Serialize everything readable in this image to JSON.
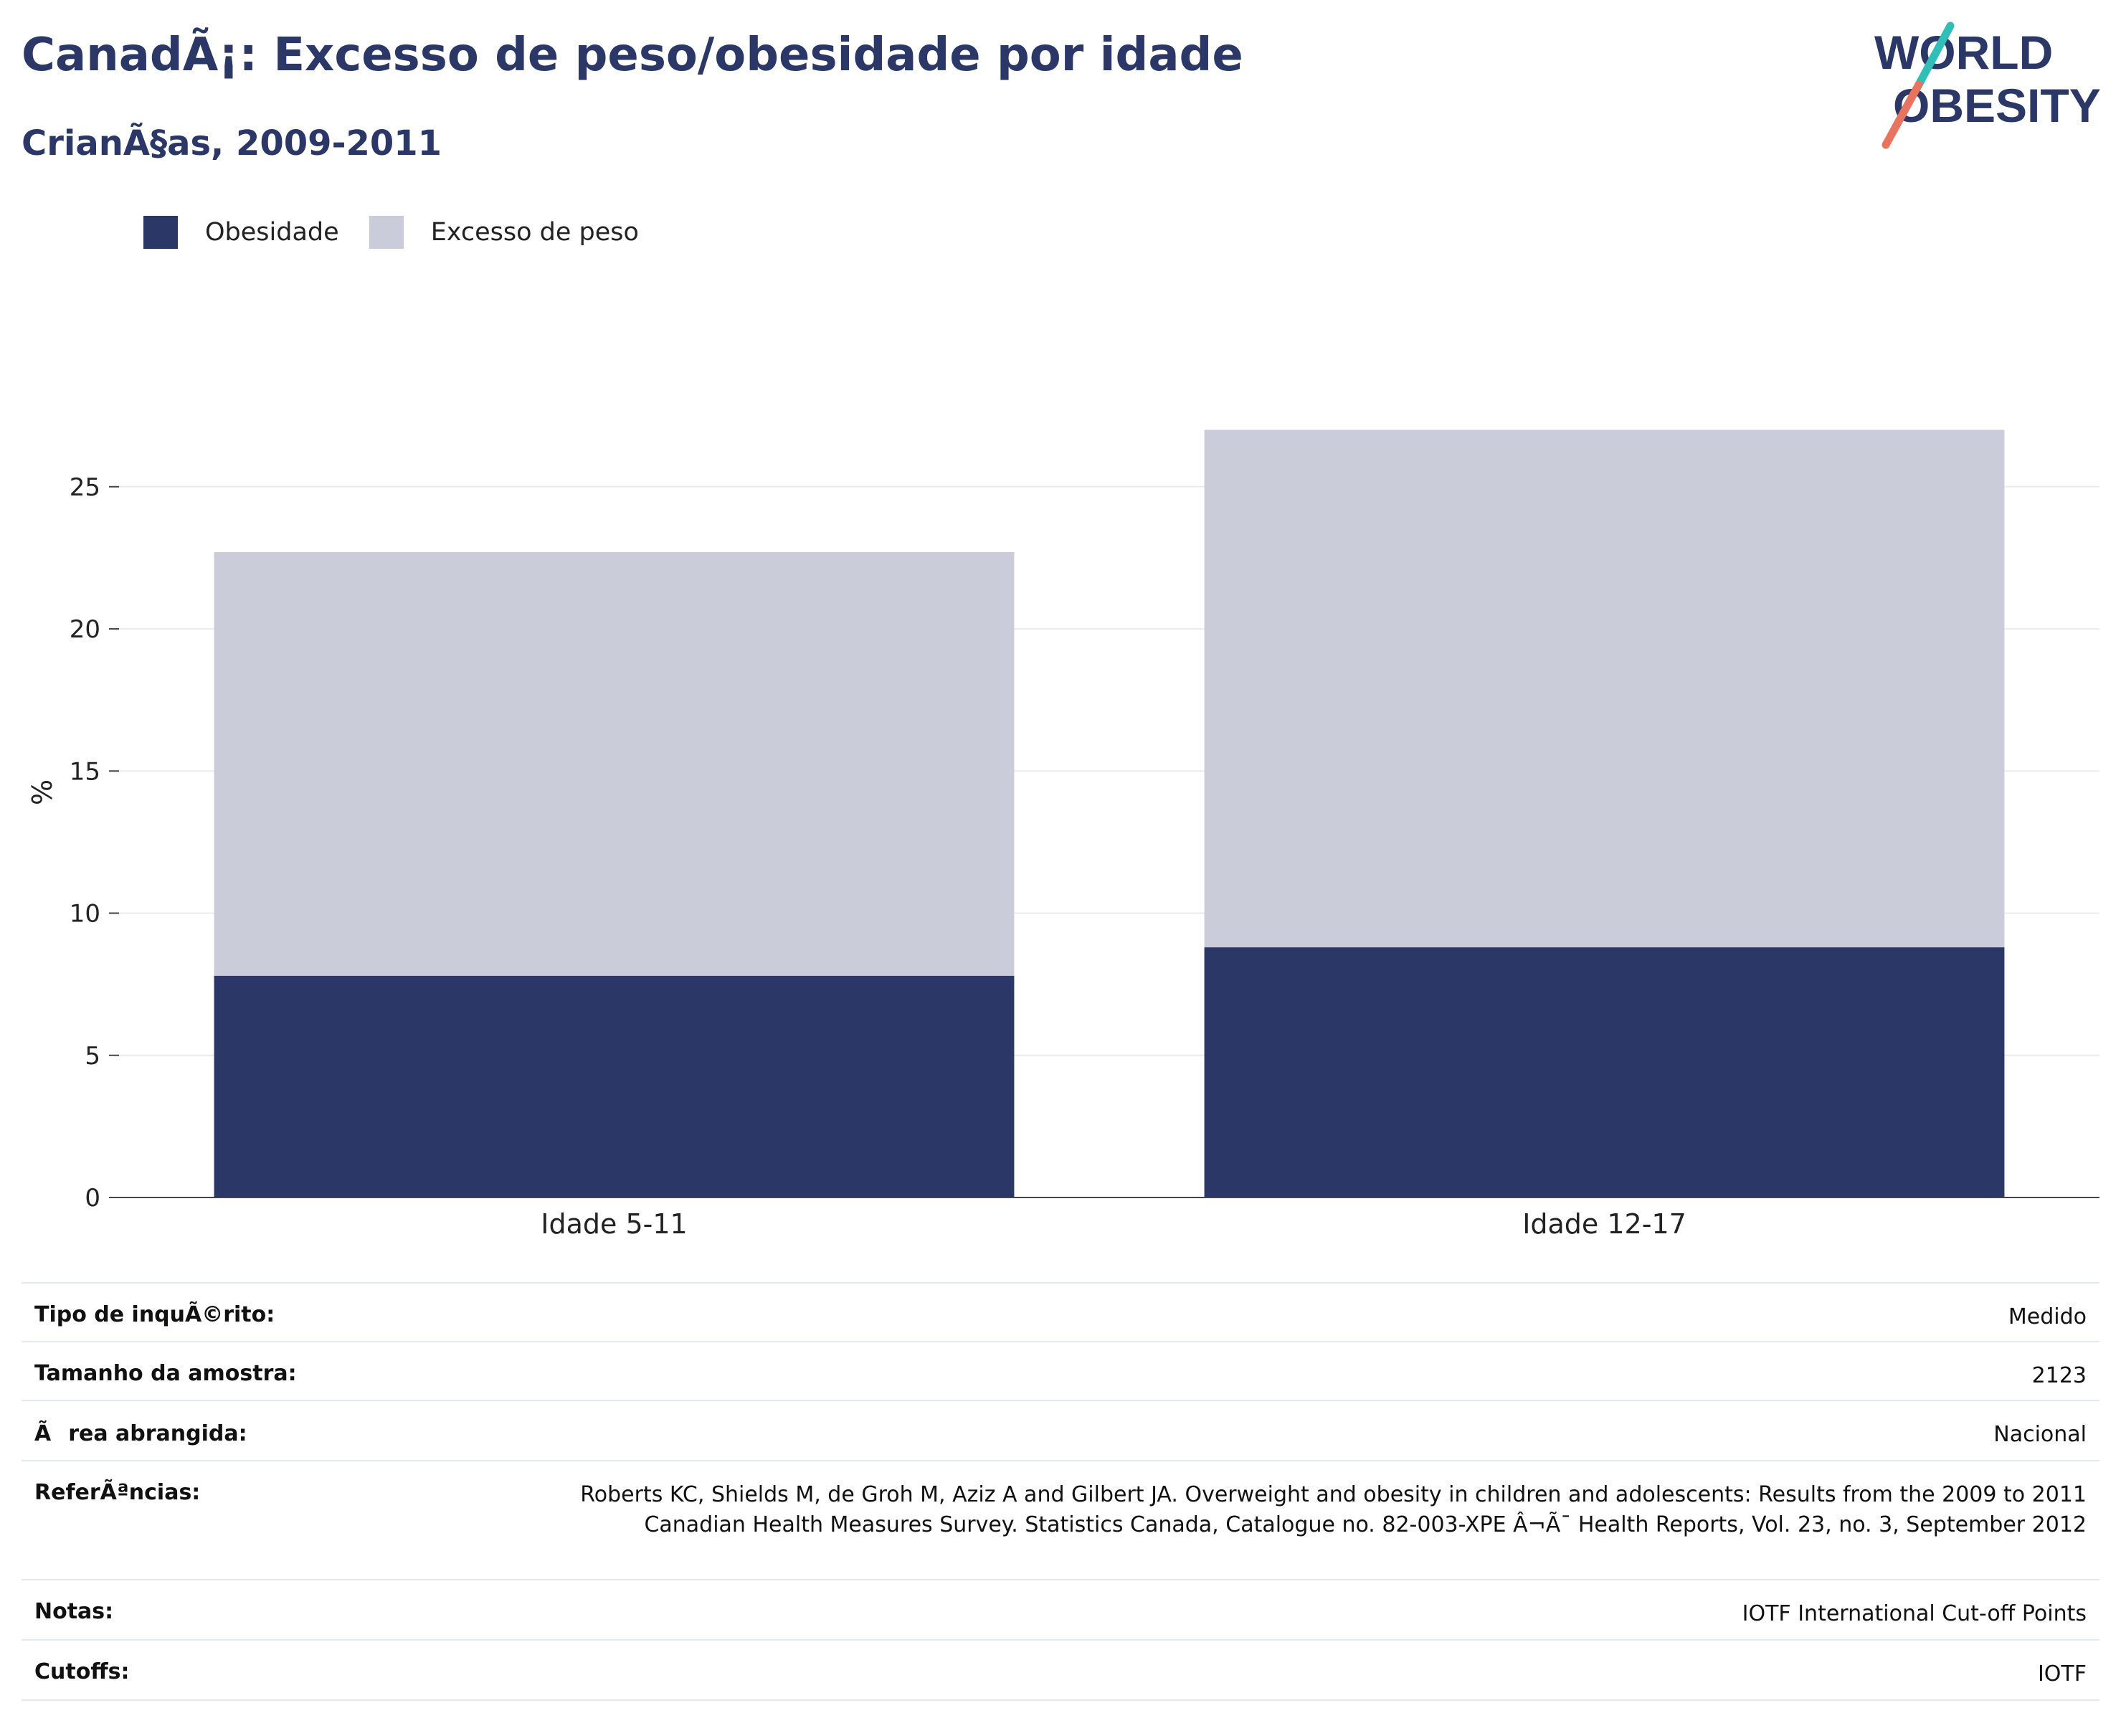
{
  "header": {
    "title": "CanadÃ¡: Excesso de peso/obesidade por idade",
    "subtitle": "CrianÃ§as, 2009-2011"
  },
  "logo": {
    "line1": "WORLD",
    "line2": "OBESITY",
    "colors": {
      "text": "#2b3766",
      "slash_top": "#2fbfb8",
      "slash_bottom": "#e8735f"
    }
  },
  "legend": [
    {
      "label": "Obesidade",
      "color": "#2b3766"
    },
    {
      "label": "Excesso de peso",
      "color": "#cacdd9"
    }
  ],
  "chart_data": {
    "type": "bar",
    "stacked": true,
    "categories": [
      "Idade 5-11",
      "Idade 12-17"
    ],
    "series": [
      {
        "name": "Obesidade",
        "color": "#2b3766",
        "values": [
          7.8,
          8.8
        ]
      },
      {
        "name": "Excesso de peso",
        "color": "#cacdd9",
        "values": [
          14.9,
          18.2
        ]
      }
    ],
    "ylabel": "%",
    "ylim": [
      0,
      28.5
    ],
    "yticks": [
      0,
      5,
      10,
      15,
      20,
      25
    ],
    "grid": true,
    "legend_position": "top-left"
  },
  "meta": [
    {
      "key": "Tipo de inquÃ©rito:",
      "value": "Medido"
    },
    {
      "key": "Tamanho da amostra:",
      "value": "2123"
    },
    {
      "key": "Ãrea abrangida:",
      "value": "Nacional"
    },
    {
      "key": "ReferÃªncias:",
      "value": "Roberts KC, Shields M, de Groh M, Aziz A and Gilbert JA. Overweight and obesity in children and adolescents: Results from the 2009 to 2011 Canadian Health Measures Survey. Statistics Canada, Catalogue no. 82-003-XPE Â¬Ã¯ Health Reports, Vol. 23, no. 3, September 2012"
    },
    {
      "key": "Notas:",
      "value": "IOTF International Cut-off Points"
    },
    {
      "key": "Cutoffs:",
      "value": "IOTF"
    }
  ]
}
